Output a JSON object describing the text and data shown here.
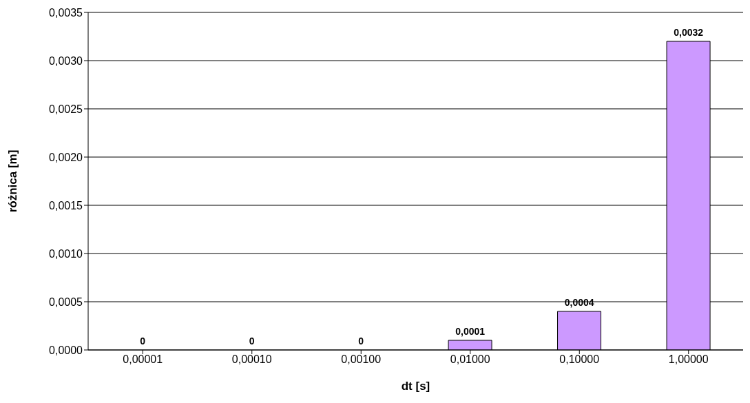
{
  "chart_data": {
    "type": "bar",
    "xlabel": "dt [s]",
    "ylabel": "różnica [m]",
    "categories": [
      "0,00001",
      "0,00010",
      "0,00100",
      "0,01000",
      "0,10000",
      "1,00000"
    ],
    "values": [
      0,
      0,
      0,
      0.0001,
      0.0004,
      0.0032
    ],
    "value_labels": [
      "0",
      "0",
      "0",
      "0,0001",
      "0,0004",
      "0,0032"
    ],
    "color": "#cc99ff",
    "ylim": [
      0,
      0.0035
    ],
    "yticks": [
      {
        "value": 0,
        "label": "0,0000"
      },
      {
        "value": 0.0005,
        "label": "0,0005"
      },
      {
        "value": 0.001,
        "label": "0,0010"
      },
      {
        "value": 0.0015,
        "label": "0,0015"
      },
      {
        "value": 0.002,
        "label": "0,0020"
      },
      {
        "value": 0.0025,
        "label": "0,0025"
      },
      {
        "value": 0.003,
        "label": "0,0030"
      },
      {
        "value": 0.0035,
        "label": "0,0035"
      }
    ],
    "grid": "y",
    "legend": false
  }
}
